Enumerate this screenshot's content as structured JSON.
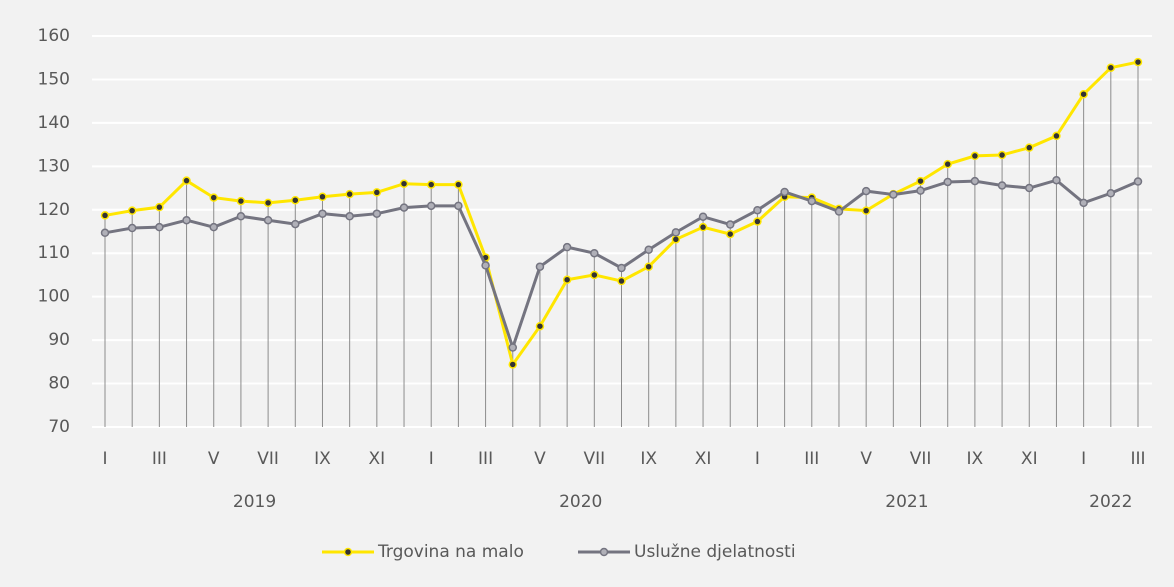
{
  "chart_data": {
    "type": "line",
    "categories": [
      "I",
      null,
      "III",
      null,
      "V",
      null,
      "VII",
      null,
      "IX",
      null,
      "XI",
      null,
      "I",
      null,
      "III",
      null,
      "V",
      null,
      "VII",
      null,
      "IX",
      null,
      "XI",
      null,
      "I",
      null,
      "III",
      null,
      "V",
      null,
      "VII",
      null,
      "IX",
      null,
      "XI",
      null,
      "I",
      null,
      "III"
    ],
    "years": [
      "2019",
      "2020",
      "2021",
      "2022"
    ],
    "series": [
      {
        "name": "Trgovina na malo",
        "color": "#ffe600",
        "values": [
          118.7,
          119.8,
          120.6,
          126.7,
          122.8,
          122.0,
          121.6,
          122.2,
          123.0,
          123.6,
          124.0,
          126.0,
          125.8,
          125.8,
          109.0,
          84.4,
          93.2,
          103.9,
          105.0,
          103.6,
          106.9,
          113.2,
          116.0,
          114.4,
          117.3,
          123.0,
          122.8,
          120.2,
          119.8,
          123.6,
          126.6,
          130.5,
          132.4,
          132.6,
          134.3,
          137.0,
          146.6,
          152.7,
          154.0
        ]
      },
      {
        "name": "Uslužne djelatnosti",
        "color": "#747480",
        "values": [
          114.7,
          115.8,
          116.0,
          117.6,
          116.0,
          118.5,
          117.6,
          116.7,
          119.1,
          118.5,
          119.1,
          120.5,
          120.9,
          120.9,
          107.2,
          88.3,
          106.9,
          111.4,
          110.0,
          106.6,
          110.8,
          114.8,
          118.4,
          116.6,
          119.9,
          124.1,
          122.0,
          119.6,
          124.3,
          123.5,
          124.4,
          126.4,
          126.6,
          125.6,
          125.0,
          126.8,
          121.6,
          123.8,
          126.5
        ]
      }
    ],
    "ylim": [
      70,
      160
    ],
    "yticks": [
      70,
      80,
      90,
      100,
      110,
      120,
      130,
      140,
      150,
      160
    ],
    "grid": true,
    "legend": "bottom"
  }
}
